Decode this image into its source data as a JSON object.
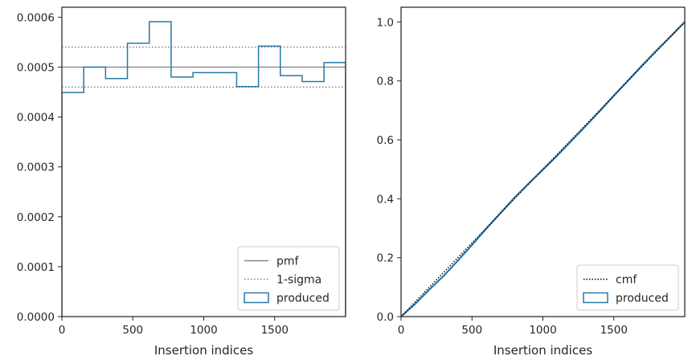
{
  "chart_data": [
    {
      "type": "line",
      "xlabel": "Insertion indices",
      "ylabel": "",
      "xlim": [
        0,
        2000
      ],
      "ylim": [
        0,
        0.00062
      ],
      "grid": false,
      "legend_placement": "bottom-right",
      "x_ticks": [
        0,
        500,
        1000,
        1500
      ],
      "x_tick_labels": [
        "0",
        "500",
        "1000",
        "1500"
      ],
      "y_ticks": [
        0,
        0.0001,
        0.0002,
        0.0003,
        0.0004,
        0.0005,
        0.0006
      ],
      "y_tick_labels": [
        "0.0000",
        "0.0001",
        "0.0002",
        "0.0003",
        "0.0004",
        "0.0005",
        "0.0006"
      ],
      "series": [
        {
          "name": "pmf",
          "style": "solid",
          "color": "#808080",
          "y": 0.0005
        },
        {
          "name": "1-sigma",
          "style": "dotted",
          "color": "#808080",
          "y_values": [
            0.00046,
            0.00054
          ]
        },
        {
          "name": "produced",
          "style": "step",
          "color": "#2878a8",
          "bin_edges": [
            0,
            154,
            308,
            462,
            616,
            770,
            924,
            1078,
            1232,
            1386,
            1540,
            1694,
            1848,
            2000
          ],
          "values": [
            0.000449,
            0.0005,
            0.000477,
            0.000548,
            0.000591,
            0.00048,
            0.000489,
            0.000489,
            0.000461,
            0.000542,
            0.000483,
            0.000471,
            0.000509
          ]
        }
      ],
      "legend": [
        "pmf",
        "1-sigma",
        "produced"
      ]
    },
    {
      "type": "line",
      "xlabel": "Insertion indices",
      "ylabel": "",
      "xlim": [
        0,
        2000
      ],
      "ylim": [
        0,
        1.05
      ],
      "grid": false,
      "legend_placement": "bottom-right",
      "x_ticks": [
        0,
        500,
        1000,
        1500
      ],
      "x_tick_labels": [
        "0",
        "500",
        "1000",
        "1500"
      ],
      "y_ticks": [
        0,
        0.2,
        0.4,
        0.6,
        0.8,
        1.0
      ],
      "y_tick_labels": [
        "0.0",
        "0.2",
        "0.4",
        "0.6",
        "0.8",
        "1.0"
      ],
      "series": [
        {
          "name": "cmf",
          "style": "dotted",
          "color": "#000000",
          "x": [
            0,
            2000
          ],
          "y": [
            0,
            1
          ]
        },
        {
          "name": "produced",
          "style": "step",
          "color": "#2878a8",
          "x": [
            0,
            100,
            200,
            300,
            400,
            500,
            600,
            700,
            800,
            900,
            1000,
            1100,
            1200,
            1300,
            1400,
            1500,
            1600,
            1700,
            1800,
            1900,
            2000
          ],
          "y": [
            0,
            0.043,
            0.092,
            0.138,
            0.19,
            0.243,
            0.298,
            0.351,
            0.404,
            0.452,
            0.499,
            0.546,
            0.596,
            0.646,
            0.697,
            0.75,
            0.801,
            0.853,
            0.903,
            0.951,
            1.0
          ]
        }
      ],
      "legend": [
        "cmf",
        "produced"
      ]
    }
  ]
}
